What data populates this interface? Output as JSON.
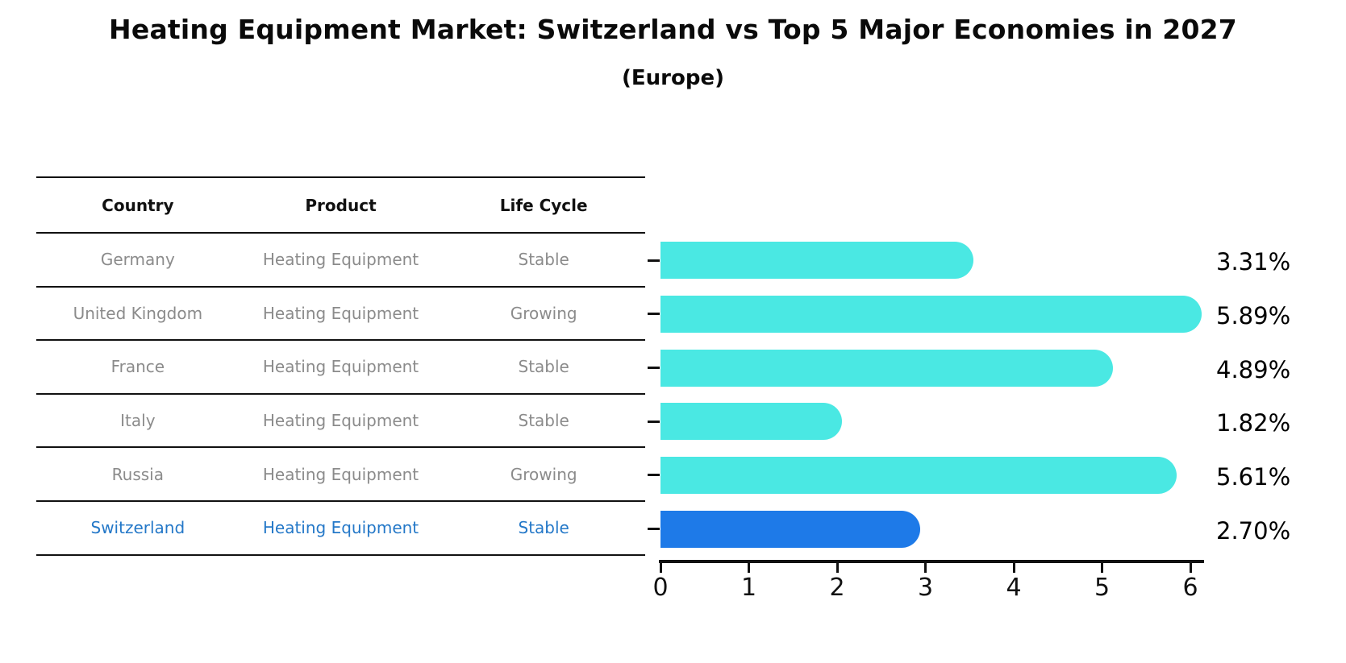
{
  "title": "Heating Equipment Market: Switzerland vs Top 5 Major Economies in 2027",
  "subtitle": "(Europe)",
  "table": {
    "headers": [
      "Country",
      "Product",
      "Life Cycle"
    ],
    "rows": [
      {
        "country": "Germany",
        "product": "Heating Equipment",
        "life_cycle": "Stable",
        "highlighted": false
      },
      {
        "country": "United Kingdom",
        "product": "Heating Equipment",
        "life_cycle": "Growing",
        "highlighted": false
      },
      {
        "country": "France",
        "product": "Heating Equipment",
        "life_cycle": "Stable",
        "highlighted": false
      },
      {
        "country": "Italy",
        "product": "Heating Equipment",
        "life_cycle": "Stable",
        "highlighted": false
      },
      {
        "country": "Russia",
        "product": "Heating Equipment",
        "life_cycle": "Growing",
        "highlighted": false
      },
      {
        "country": "Switzerland",
        "product": "Heating Equipment",
        "life_cycle": "Stable",
        "highlighted": true
      }
    ]
  },
  "chart_data": {
    "type": "bar",
    "orientation": "horizontal",
    "categories": [
      "Germany",
      "United Kingdom",
      "France",
      "Italy",
      "Russia",
      "Switzerland"
    ],
    "values": [
      3.31,
      5.89,
      4.89,
      1.82,
      5.61,
      2.7
    ],
    "value_labels": [
      "3.31%",
      "5.89%",
      "4.89%",
      "1.82%",
      "5.61%",
      "2.70%"
    ],
    "title": "Heating Equipment Market: Switzerland vs Top 5 Major Economies in 2027 (Europe)",
    "xlabel": "",
    "ylabel": "",
    "xlim": [
      0,
      6
    ],
    "xticks": [
      "0",
      "1",
      "2",
      "3",
      "4",
      "5",
      "6"
    ],
    "grid": false,
    "legend": "none",
    "bar_color": "#4ae8e3",
    "highlight_bar_color": "#1e7ae8",
    "highlight_index": 5,
    "highlight_style": "dotted-border rounded-right"
  },
  "colors": {
    "background": "#ffffff",
    "title_text": "#0a0a0a",
    "header_text": "#111111",
    "row_text": "#8b8b8b",
    "highlight_text": "#2478c8",
    "axis": "#111111"
  }
}
